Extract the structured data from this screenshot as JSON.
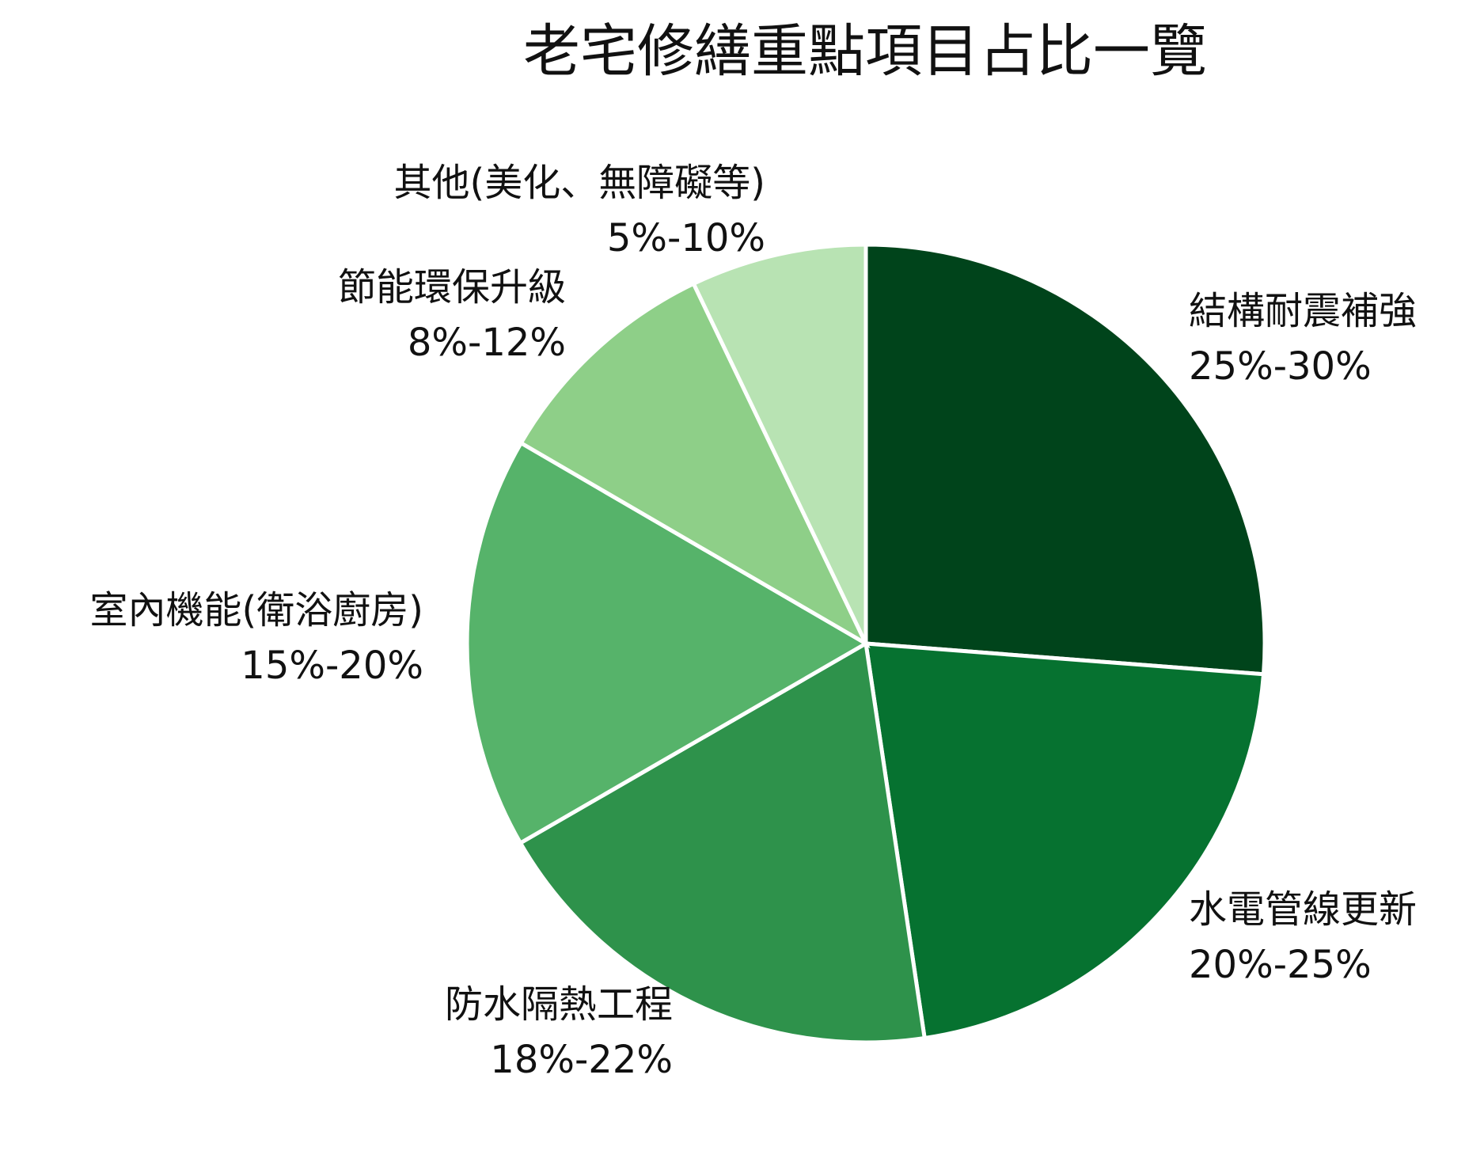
{
  "chart_data": {
    "type": "pie",
    "title": "老宅修繕重點項目占比一覽",
    "categories": [
      "結構耐震補強",
      "水電管線更新",
      "防水隔熱工程",
      "室內機能(衛浴廚房)",
      "節能環保升級",
      "其他(美化、無障礙等)"
    ],
    "values": [
      26.2,
      21.4,
      19.0,
      16.7,
      9.5,
      7.1
    ],
    "ranges": [
      "25%-30%",
      "20%-25%",
      "18%-22%",
      "15%-20%",
      "8%-12%",
      "5%-10%"
    ],
    "colors": [
      "#00441b",
      "#067230",
      "#2e924b",
      "#56b36a",
      "#8ecf88",
      "#b8e3b3"
    ]
  }
}
